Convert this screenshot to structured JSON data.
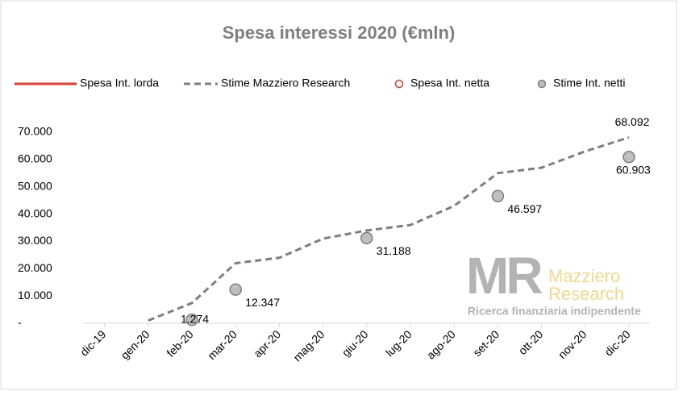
{
  "chart_data": {
    "type": "line",
    "title": "Spesa interessi 2020 (€mln)",
    "categories": [
      "dic-19",
      "gen-20",
      "feb-20",
      "mar-20",
      "apr-20",
      "mag-20",
      "giu-20",
      "lug-20",
      "ago-20",
      "set-20",
      "ott-20",
      "nov-20",
      "dic-20"
    ],
    "series": [
      {
        "name": "Spesa Int. lorda",
        "color": "#e8392b",
        "style": "solid",
        "values": [
          null,
          null,
          null,
          null,
          null,
          null,
          null,
          null,
          null,
          null,
          null,
          null,
          null
        ]
      },
      {
        "name": "Stime Mazziero Research",
        "color": "#7f7f7f",
        "style": "dashed",
        "values": [
          null,
          1000,
          7400,
          22000,
          24000,
          31000,
          34000,
          36000,
          43000,
          55000,
          57000,
          63000,
          68092
        ],
        "value_labels": [
          null,
          null,
          null,
          null,
          null,
          null,
          null,
          null,
          null,
          null,
          null,
          null,
          "68.092"
        ]
      },
      {
        "name": "Spesa Int. netta",
        "color": "#e8392b",
        "style": "marker",
        "values": [
          null,
          null,
          null,
          null,
          null,
          null,
          null,
          null,
          null,
          null,
          null,
          null,
          null
        ]
      },
      {
        "name": "Stime Int. netti",
        "color": "#bfbfbf",
        "style": "marker",
        "values": [
          null,
          null,
          1274,
          12347,
          null,
          null,
          31188,
          null,
          null,
          46597,
          null,
          null,
          60903
        ],
        "value_labels": [
          null,
          null,
          "1.274",
          "12.347",
          null,
          null,
          "31.188",
          null,
          null,
          "46.597",
          null,
          null,
          "60.903"
        ]
      }
    ],
    "ylim": [
      0,
      70000
    ],
    "yticks": [
      {
        "value": 0,
        "label": "-"
      },
      {
        "value": 10000,
        "label": "10.000"
      },
      {
        "value": 20000,
        "label": "20.000"
      },
      {
        "value": 30000,
        "label": "30.000"
      },
      {
        "value": 40000,
        "label": "40.000"
      },
      {
        "value": 50000,
        "label": "50.000"
      },
      {
        "value": 60000,
        "label": "60.000"
      },
      {
        "value": 70000,
        "label": "70.000"
      }
    ],
    "watermark": {
      "logo": "MR",
      "name_1": "Mazziero",
      "name_2": "Research",
      "tagline": "Ricerca finanziaria indipendente"
    }
  }
}
